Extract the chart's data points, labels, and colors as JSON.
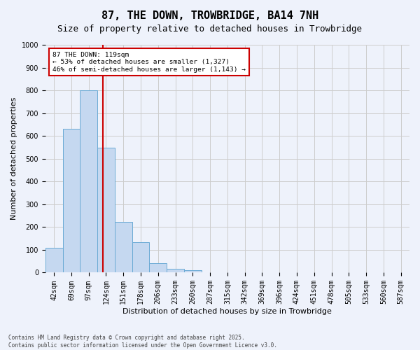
{
  "title": "87, THE DOWN, TROWBRIDGE, BA14 7NH",
  "subtitle": "Size of property relative to detached houses in Trowbridge",
  "xlabel": "Distribution of detached houses by size in Trowbridge",
  "ylabel": "Number of detached properties",
  "bins": [
    "42sqm",
    "69sqm",
    "97sqm",
    "124sqm",
    "151sqm",
    "178sqm",
    "206sqm",
    "233sqm",
    "260sqm",
    "287sqm",
    "315sqm",
    "342sqm",
    "369sqm",
    "396sqm",
    "424sqm",
    "451sqm",
    "478sqm",
    "505sqm",
    "533sqm",
    "560sqm",
    "587sqm"
  ],
  "values": [
    108,
    630,
    800,
    548,
    222,
    135,
    42,
    17,
    10,
    0,
    0,
    0,
    0,
    0,
    0,
    0,
    0,
    0,
    0,
    0,
    0
  ],
  "bar_color": "#c5d8f0",
  "bar_edge_color": "#6aaad4",
  "vline_pos": 2.815,
  "vline_color": "#cc0000",
  "annotation_text": "87 THE DOWN: 119sqm\n← 53% of detached houses are smaller (1,327)\n46% of semi-detached houses are larger (1,143) →",
  "annotation_box_color": "#ffffff",
  "annotation_box_edge": "#cc0000",
  "ylim": [
    0,
    1000
  ],
  "yticks": [
    0,
    100,
    200,
    300,
    400,
    500,
    600,
    700,
    800,
    900,
    1000
  ],
  "grid_color": "#cccccc",
  "background_color": "#eef2fb",
  "footer_line1": "Contains HM Land Registry data © Crown copyright and database right 2025.",
  "footer_line2": "Contains public sector information licensed under the Open Government Licence v3.0.",
  "title_fontsize": 11,
  "subtitle_fontsize": 9,
  "axis_fontsize": 8,
  "tick_fontsize": 7
}
